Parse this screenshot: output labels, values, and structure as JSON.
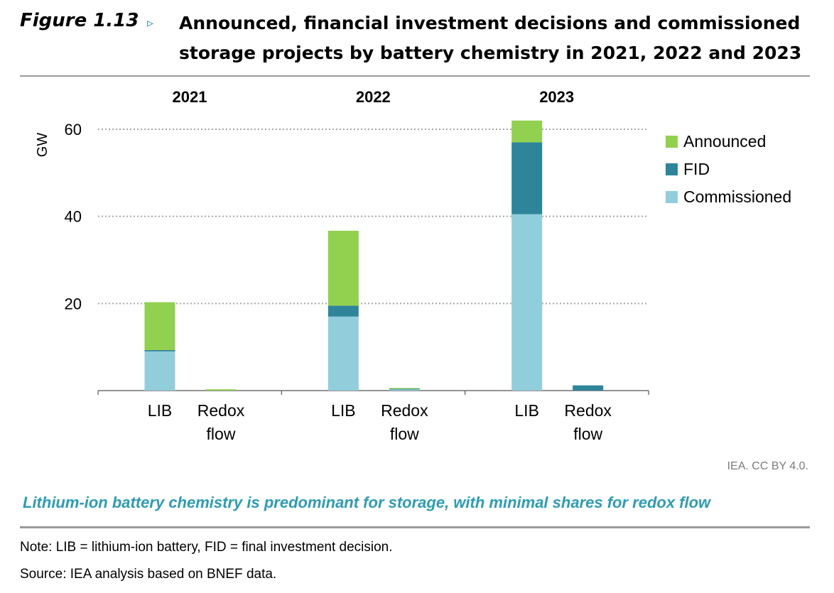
{
  "figure": {
    "label": "Figure 1.13",
    "arrow": "▹",
    "title_line1": "Announced, financial investment decisions and commissioned",
    "title_line2": "storage projects by battery chemistry in 2021, 2022 and 2023"
  },
  "credit": "IEA. CC BY 4.0.",
  "caption": "Lithium-ion battery chemistry is predominant for storage, with minimal shares for redox flow",
  "note": "Note: LIB = lithium-ion battery, FID = final investment decision.",
  "source": "Source: IEA analysis based on BNEF data.",
  "colors": {
    "announced": "#92d050",
    "fid": "#2e8599",
    "commissioned": "#92cddc",
    "accent": "#2e9bb3",
    "grid": "#a6a6a6",
    "rule": "#9a9a9a"
  },
  "chart_data": {
    "type": "bar",
    "stacked": true,
    "ylabel": "GW",
    "ylim": [
      0,
      60
    ],
    "yticks": [
      20,
      40,
      60
    ],
    "grid": "dotted horizontal",
    "legend_position": "right",
    "panels": [
      "2021",
      "2022",
      "2023"
    ],
    "category_labels": [
      "LIB",
      "Redox flow"
    ],
    "categories": [
      "2021 LIB",
      "2021 Redox flow",
      "2022 LIB",
      "2022 Redox flow",
      "2023 LIB",
      "2023 Redox flow"
    ],
    "series": [
      {
        "name": "Commissioned",
        "values": [
          9,
          0,
          17,
          0.3,
          40.5,
          0
        ]
      },
      {
        "name": "FID",
        "values": [
          0.3,
          0,
          2.5,
          0.1,
          16.5,
          1.2
        ]
      },
      {
        "name": "Announced",
        "values": [
          11,
          0.3,
          17.2,
          0.2,
          5,
          0
        ]
      }
    ]
  }
}
